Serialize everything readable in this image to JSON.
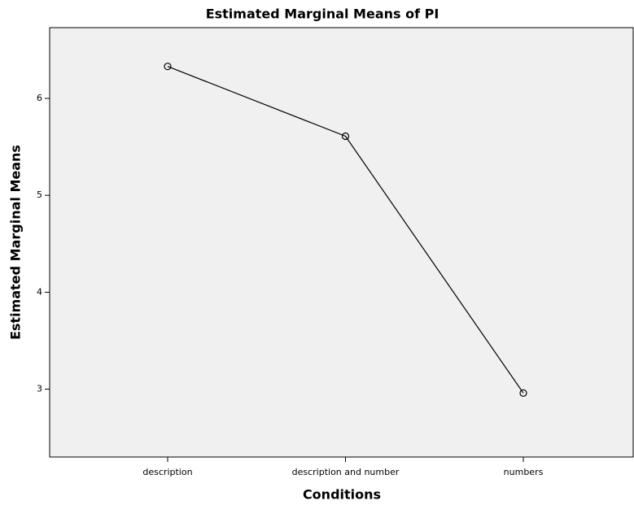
{
  "chart_data": {
    "type": "line",
    "title": "Estimated Marginal Means of PI",
    "x_label": "Conditions",
    "y_label": "Estimated Marginal Means",
    "categories": [
      "description",
      "description and number",
      "numbers"
    ],
    "values": [
      6.33,
      5.61,
      2.96
    ],
    "color": "#000000",
    "ylim": [
      2.3,
      6.73
    ],
    "yticks": [
      3,
      4,
      5,
      6
    ],
    "grid": false
  }
}
